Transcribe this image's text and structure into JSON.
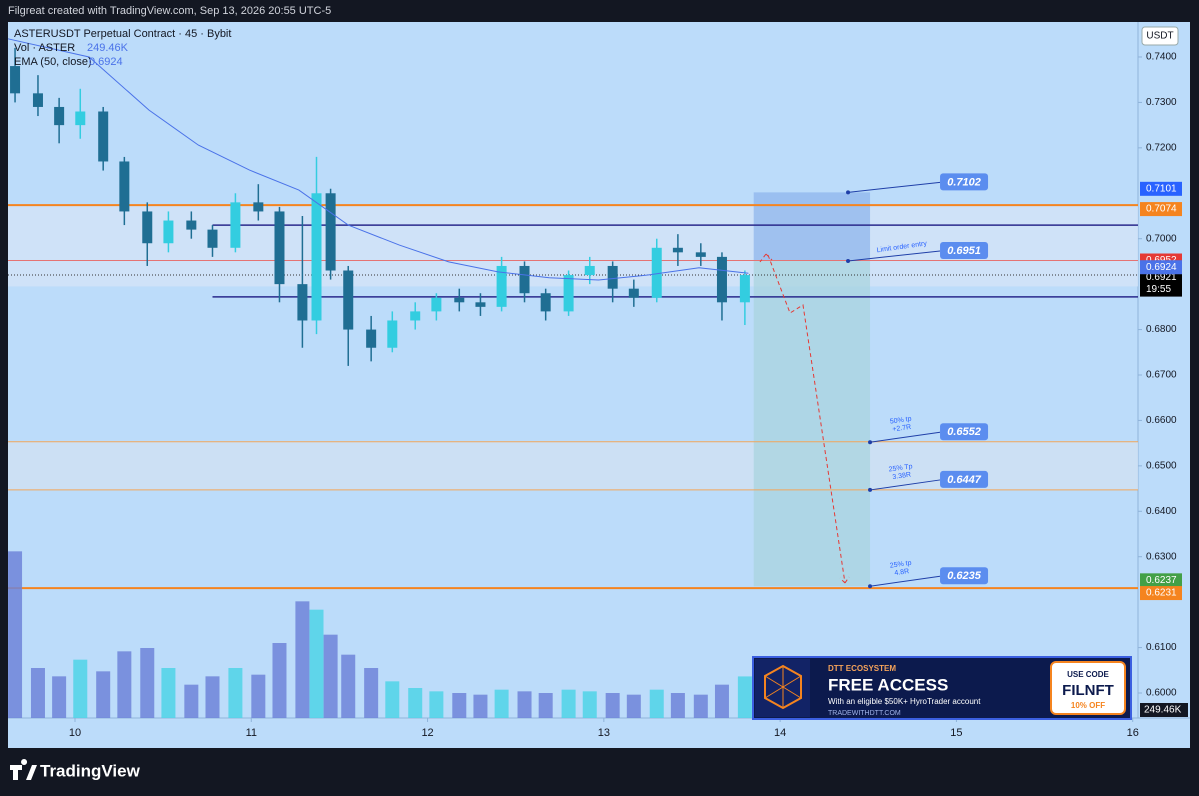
{
  "header": {
    "caption": "Filgreat created with TradingView.com, Sep 13, 2026 20:55 UTC-5",
    "brand": "TradingView"
  },
  "ad": {
    "eyebrow": "DTT ECOSYSTEM",
    "headline": "FREE ACCESS",
    "body": "With an eligible $50K+ HyroTrader account",
    "site": "TRADEWITHDTT.COM",
    "code_title": "USE CODE",
    "code": "FILNFT",
    "discount": "10% OFF"
  },
  "chart_data": {
    "type": "candlestick",
    "title": "ASTERUSDT Perpetual Contract · 45 · Bybit",
    "currency": "USDT",
    "up_color": "#33cde0",
    "down_color": "#1f6e93",
    "x": [
      9.66,
      9.79,
      9.91,
      10.03,
      10.16,
      10.28,
      10.41,
      10.53,
      10.66,
      10.78,
      10.91,
      11.04,
      11.16,
      11.29,
      11.37,
      11.45,
      11.55,
      11.68,
      11.8,
      11.93,
      12.05,
      12.18,
      12.3,
      12.42,
      12.55,
      12.67,
      12.8,
      12.92,
      13.05,
      13.17,
      13.3,
      13.42,
      13.55,
      13.67,
      13.8
    ],
    "open": [
      0.738,
      0.732,
      0.729,
      0.725,
      0.728,
      0.717,
      0.706,
      0.699,
      0.704,
      0.702,
      0.698,
      0.708,
      0.706,
      0.69,
      0.682,
      0.71,
      0.693,
      0.68,
      0.676,
      0.682,
      0.684,
      0.687,
      0.686,
      0.685,
      0.694,
      0.688,
      0.684,
      0.692,
      0.694,
      0.689,
      0.687,
      0.698,
      0.697,
      0.696,
      0.686
    ],
    "high": [
      0.742,
      0.736,
      0.731,
      0.733,
      0.729,
      0.718,
      0.708,
      0.706,
      0.706,
      0.703,
      0.71,
      0.712,
      0.707,
      0.705,
      0.718,
      0.711,
      0.694,
      0.683,
      0.684,
      0.686,
      0.688,
      0.689,
      0.688,
      0.696,
      0.695,
      0.689,
      0.693,
      0.696,
      0.695,
      0.691,
      0.7,
      0.701,
      0.699,
      0.697,
      0.693
    ],
    "low": [
      0.73,
      0.727,
      0.721,
      0.722,
      0.715,
      0.703,
      0.694,
      0.697,
      0.7,
      0.696,
      0.697,
      0.704,
      0.686,
      0.676,
      0.679,
      0.691,
      0.672,
      0.673,
      0.675,
      0.68,
      0.682,
      0.684,
      0.683,
      0.684,
      0.686,
      0.682,
      0.683,
      0.69,
      0.686,
      0.685,
      0.686,
      0.694,
      0.694,
      0.682,
      0.681
    ],
    "close": [
      0.732,
      0.729,
      0.725,
      0.728,
      0.717,
      0.706,
      0.699,
      0.704,
      0.702,
      0.698,
      0.708,
      0.706,
      0.69,
      0.682,
      0.71,
      0.693,
      0.68,
      0.676,
      0.682,
      0.684,
      0.687,
      0.686,
      0.685,
      0.694,
      0.688,
      0.684,
      0.692,
      0.694,
      0.689,
      0.687,
      0.698,
      0.697,
      0.696,
      0.686,
      0.692
    ],
    "volume_name": "Vol · ASTER",
    "volume": [
      1000,
      300,
      250,
      350,
      280,
      400,
      420,
      300,
      200,
      250,
      300,
      260,
      450,
      700,
      650,
      500,
      380,
      300,
      220,
      180,
      160,
      150,
      140,
      170,
      160,
      150,
      170,
      160,
      150,
      140,
      170,
      150,
      140,
      200,
      249.46
    ],
    "volume_value_label": "249.46K",
    "volume_ylim": [
      0,
      1200
    ],
    "ema": {
      "name": "EMA (50, close)",
      "color": "#4a72e8",
      "x": [
        9.62,
        10.08,
        10.42,
        10.7,
        10.99,
        11.27,
        11.55,
        11.84,
        12.12,
        12.4,
        12.69,
        12.97,
        13.25,
        13.54,
        13.82
      ],
      "values": [
        0.744,
        0.74,
        0.7283,
        0.7206,
        0.7151,
        0.7107,
        0.703,
        0.6986,
        0.6949,
        0.6927,
        0.6914,
        0.6909,
        0.692,
        0.6936,
        0.6924
      ]
    },
    "xlim": [
      9.62,
      16.03
    ],
    "xticks": [
      10,
      11,
      12,
      13,
      14,
      15,
      16
    ],
    "ylim": [
      0.5945,
      0.7477
    ],
    "yticks": [
      {
        "value": 0.74,
        "label": "0.7400"
      },
      {
        "value": 0.73,
        "label": "0.7300"
      },
      {
        "value": 0.72,
        "label": "0.7200"
      },
      {
        "value": 0.7,
        "label": "0.7000"
      },
      {
        "value": 0.68,
        "label": "0.6800"
      },
      {
        "value": 0.67,
        "label": "0.6700"
      },
      {
        "value": 0.66,
        "label": "0.6600"
      },
      {
        "value": 0.65,
        "label": "0.6500"
      },
      {
        "value": 0.64,
        "label": "0.6400"
      },
      {
        "value": 0.63,
        "label": "0.6300"
      },
      {
        "value": 0.61,
        "label": "0.6100"
      },
      {
        "value": 0.6,
        "label": "0.6000"
      }
    ],
    "zones": [
      {
        "from": 0.7074,
        "to": 0.6895,
        "color": "#d3e4f7"
      },
      {
        "from": 0.6553,
        "to": 0.6447,
        "color": "#cfe1f3"
      }
    ],
    "levels": [
      {
        "value": 0.7074,
        "color": "#f5841f",
        "start": 9.62
      },
      {
        "value": 0.6231,
        "color": "#f5841f",
        "start": 9.62
      },
      {
        "value": 0.6553,
        "color": "#f2a65a",
        "start": 9.62
      },
      {
        "value": 0.6447,
        "color": "#f2a65a",
        "start": 9.62
      },
      {
        "value": 0.6952,
        "color": "#e57373",
        "start": 9.62
      },
      {
        "value": 0.703,
        "color": "#2a2a8c",
        "start": 10.78
      },
      {
        "value": 0.6872,
        "color": "#2a2a8c",
        "start": 10.78
      }
    ],
    "price_labels": [
      {
        "value": 0.7101,
        "color": "#2962ff"
      },
      {
        "value": 0.7074,
        "color": "#f5841f"
      },
      {
        "value": 0.6952,
        "color": "#e53935"
      },
      {
        "value": 0.6921,
        "color": "#000000"
      },
      {
        "value": 0.6237,
        "color": "#43a047"
      },
      {
        "value": 0.6231,
        "color": "#f5841f"
      }
    ],
    "countdown": "19:55",
    "position": {
      "start": 13.85,
      "end": 14.51,
      "stop": 0.7102,
      "entry": 0.6951,
      "entry_note": "Limit order entry",
      "targets": [
        {
          "value": 0.6552,
          "name": "50% tp",
          "note": "+2.7R"
        },
        {
          "value": 0.6447,
          "name": "25% Tp",
          "note": "3.38R"
        },
        {
          "value": 0.6235,
          "name": "25% tp",
          "note": "4.8R"
        }
      ]
    }
  }
}
